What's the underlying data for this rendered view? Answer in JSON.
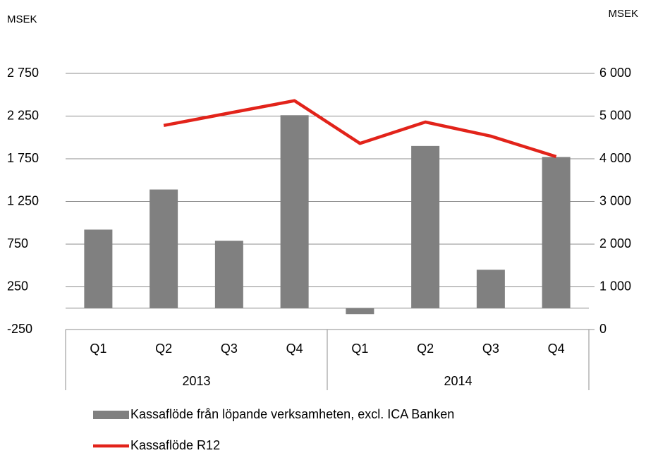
{
  "chart_data": {
    "type": "bar_line",
    "y_label": "MSEK",
    "y2_label": "MSEK",
    "categories": [
      "Q1",
      "Q2",
      "Q3",
      "Q4",
      "Q1",
      "Q2",
      "Q3",
      "Q4"
    ],
    "category_groups": [
      "2013",
      "2014"
    ],
    "series": [
      {
        "name": "Kassaflöde från löpande verksamheten, excl. ICA Banken",
        "type": "bar",
        "color": "#808080",
        "axis": "y",
        "values": [
          920,
          1390,
          790,
          2260,
          -70,
          1900,
          450,
          1770
        ]
      },
      {
        "name": "Kassaflöde R12",
        "type": "line",
        "color": "#e2231a",
        "axis": "y2",
        "values": [
          null,
          4780,
          5070,
          5360,
          4360,
          4860,
          4530,
          4050
        ]
      }
    ],
    "ylim": [
      -250,
      2750
    ],
    "yticks": [
      -250,
      250,
      750,
      {
        "value": 1250,
        "label": "1 250"
      },
      {
        "value": 1750,
        "label": "1 750"
      },
      {
        "value": 2250,
        "label": "2 250"
      },
      {
        "value": 2750,
        "label": "2 750"
      }
    ],
    "y2lim": [
      0,
      6000
    ],
    "y2ticks": [
      0,
      {
        "value": 1000,
        "label": "1 000"
      },
      {
        "value": 2000,
        "label": "2 000"
      },
      {
        "value": 3000,
        "label": "3 000"
      },
      {
        "value": 4000,
        "label": "4 000"
      },
      {
        "value": 5000,
        "label": "5 000"
      },
      {
        "value": 6000,
        "label": "6 000"
      }
    ],
    "grid": true
  }
}
